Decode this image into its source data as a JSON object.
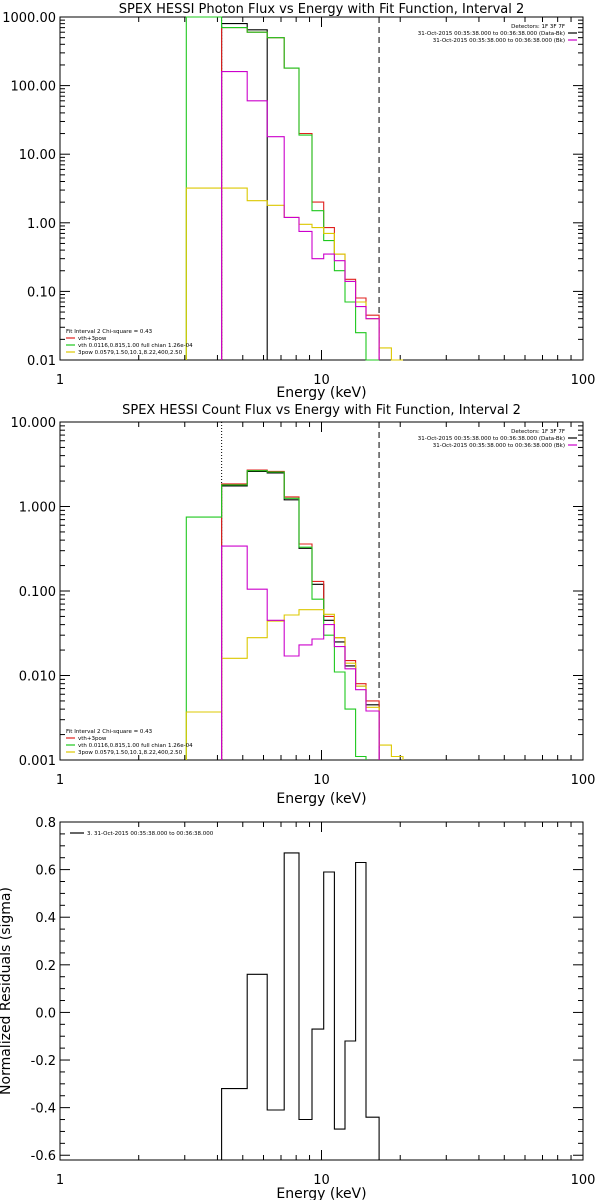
{
  "colors": {
    "data": "#000000",
    "total": "#e0201e",
    "thermal": "#1ec81e",
    "powerlaw": "#dcc800",
    "magenta": "#cc00cc"
  },
  "chart_data": [
    {
      "type": "line",
      "title": "SPEX HESSI Photon Flux vs Energy with Fit Function, Interval 2",
      "xlabel": "Energy (keV)",
      "ylabel": "",
      "xscale": "log",
      "yscale": "log",
      "xlim": [
        1,
        100
      ],
      "ylim": [
        0.01,
        1000
      ],
      "xticks": [
        "1",
        "10",
        "100"
      ],
      "yticks": [
        "0.01",
        "0.10",
        "1.00",
        "10.00",
        "100.00",
        "1000.00"
      ],
      "ytick_values": [
        0.01,
        0.1,
        1,
        10,
        100,
        1000
      ],
      "xticks_values": [
        1,
        10,
        100
      ],
      "vlines": [
        {
          "x": 4.15,
          "style": "dotted"
        },
        {
          "x": 16.6,
          "style": "dashed"
        }
      ],
      "legend_top": [
        "Detectors: 1F 3F 7F",
        "31-Oct-2015 00:35:38.000 to 00:36:38.000 (Data-Bk)",
        "31-Oct-2015 00:35:38.000 to 00:36:38.000 (Bk)"
      ],
      "legend_bottom": [
        "Fit Interval 2   Chi-square = 0.43",
        "vth+3pow",
        "vth 0.0116,0.815,1.00  full chian 1.26e-04",
        "3pow 0.0579,1.50,10.1,8.22,400,2.50"
      ],
      "edges": [
        3.04,
        4.15,
        5.2,
        6.2,
        7.2,
        8.2,
        9.2,
        10.2,
        11.2,
        12.3,
        13.5,
        14.8,
        16.6,
        18.5,
        20.5
      ],
      "series": [
        {
          "color_key": "data",
          "values": [
            null,
            800,
            650,
            null,
            null,
            null,
            null,
            null,
            null,
            null,
            null,
            null,
            null,
            null
          ]
        },
        {
          "color_key": "total",
          "values": [
            null,
            700,
            600,
            500,
            180,
            20,
            2.0,
            0.85,
            0.35,
            0.15,
            0.08,
            0.045,
            null,
            null
          ]
        },
        {
          "color_key": "thermal",
          "values": [
            1000,
            700,
            600,
            500,
            180,
            19,
            1.5,
            0.55,
            0.2,
            0.07,
            0.025,
            0.01,
            null,
            null
          ]
        },
        {
          "color_key": "powerlaw",
          "values": [
            3.2,
            3.2,
            2.1,
            1.8,
            1.2,
            0.95,
            0.85,
            0.7,
            0.35,
            0.14,
            0.07,
            0.04,
            0.015,
            0.01
          ]
        },
        {
          "color_key": "magenta",
          "values": [
            null,
            160,
            60,
            18,
            1.2,
            0.75,
            0.3,
            0.35,
            0.28,
            0.14,
            0.06,
            0.04,
            null,
            null
          ]
        }
      ]
    },
    {
      "type": "line",
      "title": "SPEX HESSI Count Flux vs Energy with Fit Function, Interval 2",
      "xlabel": "Energy (keV)",
      "ylabel": "",
      "xscale": "log",
      "yscale": "log",
      "xlim": [
        1,
        100
      ],
      "ylim": [
        0.001,
        10
      ],
      "xticks": [
        "1",
        "10",
        "100"
      ],
      "yticks": [
        "0.001",
        "0.010",
        "0.100",
        "1.000",
        "10.000"
      ],
      "ytick_values": [
        0.001,
        0.01,
        0.1,
        1,
        10
      ],
      "xticks_values": [
        1,
        10,
        100
      ],
      "vlines": [
        {
          "x": 4.15,
          "style": "dotted"
        },
        {
          "x": 16.6,
          "style": "dashed"
        }
      ],
      "legend_top": [
        "Detectors: 1F 3F 7F",
        "31-Oct-2015 00:35:38.000 to 00:36:38.000 (Data-Bk)",
        "31-Oct-2015 00:35:38.000 to 00:36:38.000 (Bk)"
      ],
      "legend_bottom": [
        "Fit Interval 2   Chi-square = 0.43",
        "vth+3pow",
        "vth 0.0116,0.815,1.00  full chian 1.26e-04",
        "3pow 0.0579,1.50,10.1,8.22,400,2.50"
      ],
      "edges": [
        3.04,
        4.15,
        5.2,
        6.2,
        7.2,
        8.2,
        9.2,
        10.2,
        11.2,
        12.3,
        13.5,
        14.8,
        16.6,
        18.5,
        20.5
      ],
      "series": [
        {
          "color_key": "data",
          "values": [
            null,
            1.75,
            2.6,
            2.5,
            1.2,
            0.32,
            0.12,
            0.045,
            0.025,
            0.013,
            0.0075,
            0.0045,
            null,
            null
          ]
        },
        {
          "color_key": "total",
          "values": [
            null,
            1.85,
            2.7,
            2.6,
            1.3,
            0.36,
            0.13,
            0.05,
            0.028,
            0.015,
            0.008,
            0.005,
            null,
            null
          ]
        },
        {
          "color_key": "thermal",
          "values": [
            0.75,
            1.8,
            2.65,
            2.55,
            1.25,
            0.33,
            0.08,
            0.03,
            0.011,
            0.004,
            0.0011,
            null,
            null,
            null
          ]
        },
        {
          "color_key": "powerlaw",
          "values": [
            0.0037,
            0.016,
            0.028,
            0.044,
            0.052,
            0.06,
            0.06,
            0.053,
            0.028,
            0.014,
            0.0075,
            0.0042,
            0.0015,
            0.0011
          ]
        },
        {
          "color_key": "magenta",
          "values": [
            null,
            0.34,
            0.105,
            0.045,
            0.017,
            0.023,
            0.027,
            0.04,
            0.022,
            0.012,
            0.0068,
            0.0038,
            null,
            null
          ]
        }
      ]
    },
    {
      "type": "line",
      "title": "",
      "xlabel": "Energy (keV)",
      "ylabel": "Normalized Residuals (sigma)",
      "xscale": "log",
      "yscale": "linear",
      "xlim": [
        1,
        100
      ],
      "ylim": [
        -0.62,
        0.8
      ],
      "xticks": [
        "1",
        "10",
        "100"
      ],
      "yticks": [
        "-0.6",
        "-0.4",
        "-0.2",
        "0.0",
        "0.2",
        "0.4",
        "0.6",
        "0.8"
      ],
      "ytick_values": [
        -0.6,
        -0.4,
        -0.2,
        0.0,
        0.2,
        0.4,
        0.6,
        0.8
      ],
      "xticks_values": [
        1,
        10,
        100
      ],
      "legend_top": [
        "3. 31-Oct-2015 00:35:38.000 to 00:36:38.000"
      ],
      "edges": [
        4.15,
        5.2,
        6.2,
        7.2,
        8.2,
        9.2,
        10.2,
        11.2,
        12.3,
        13.5,
        14.8,
        16.6
      ],
      "series": [
        {
          "color_key": "data",
          "values": [
            -0.32,
            0.16,
            -0.41,
            0.67,
            -0.45,
            -0.07,
            0.59,
            -0.49,
            -0.12,
            0.63,
            -0.44
          ]
        }
      ]
    }
  ]
}
